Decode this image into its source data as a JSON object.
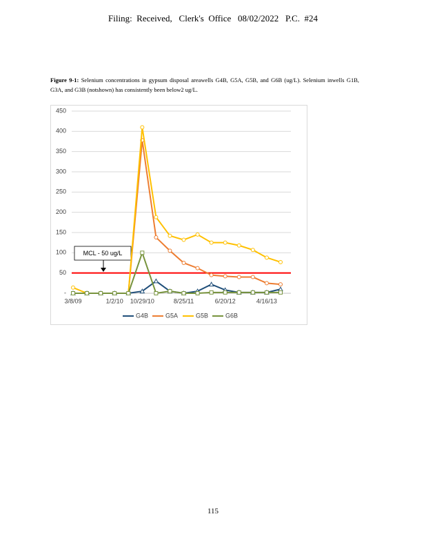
{
  "header": "Filing:  Received,   Clerk's  Office   08/02/2022   P.C.  #24",
  "caption_label": "Figure 9-1:",
  "caption_text": "Selenium concentrations in gypsum disposal areawells G4B, G5A, G5B, and G6B (ug/L). Selenium inwells G1B, G3A, and G3B (notshown) has consistently been below2 ug/L.",
  "chart_data": {
    "type": "line",
    "categories": [
      "3/8/09",
      null,
      null,
      "1/2/10",
      null,
      "10/29/10",
      null,
      null,
      "8/25/11",
      null,
      null,
      "6/20/12",
      null,
      null,
      "4/16/13",
      null
    ],
    "ylim": [
      0,
      450
    ],
    "yticks": [
      {
        "value": 0,
        "label": "-"
      },
      50,
      100,
      150,
      200,
      250,
      300,
      350,
      400,
      450
    ],
    "grid": true,
    "legend": "bottom",
    "reference_line": {
      "value": 50,
      "color": "#ff0000"
    },
    "annotation": "MCL - 50 ug/L",
    "series": [
      {
        "name": "G4B",
        "color": "#1f4e79",
        "marker": "triangle",
        "values": [
          0,
          0,
          0,
          0,
          0,
          5,
          30,
          5,
          0,
          5,
          22,
          8,
          2,
          2,
          2,
          10
        ]
      },
      {
        "name": "G5A",
        "color": "#ed7d31",
        "marker": "circle",
        "values": [
          0,
          0,
          0,
          0,
          0,
          378,
          138,
          105,
          75,
          62,
          45,
          42,
          40,
          40,
          25,
          22
        ]
      },
      {
        "name": "G5B",
        "color": "#ffc000",
        "marker": "circle",
        "values": [
          14,
          0,
          0,
          0,
          0,
          410,
          188,
          142,
          132,
          145,
          125,
          125,
          118,
          107,
          88,
          77
        ]
      },
      {
        "name": "G6B",
        "color": "#77933c",
        "marker": "square",
        "values": [
          0,
          0,
          0,
          0,
          0,
          100,
          0,
          5,
          0,
          0,
          2,
          2,
          2,
          2,
          2,
          2
        ]
      }
    ]
  },
  "page_number": "115"
}
